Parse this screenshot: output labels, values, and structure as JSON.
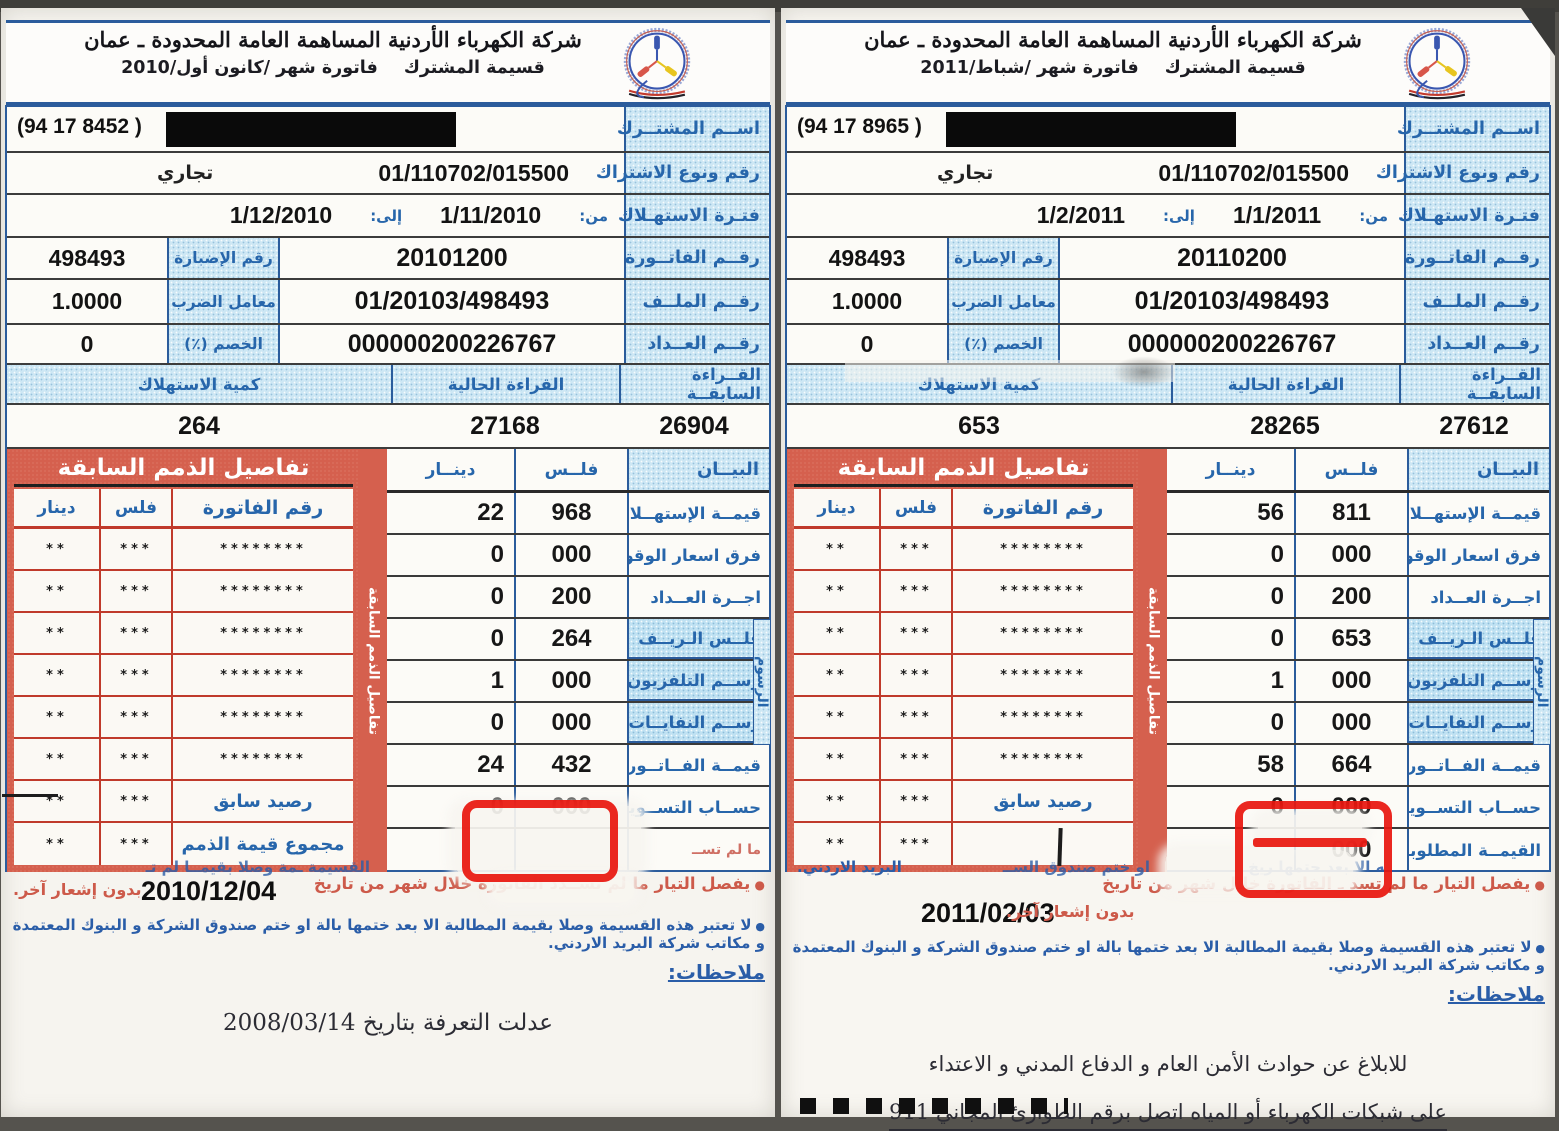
{
  "page": {
    "annotation_color": "#e8150d",
    "scan_background": "#55534e"
  },
  "bills": [
    {
      "id": "december-2010",
      "header": {
        "company": "شركة الكهرباء الأردنية المساهمة العامة المحدودة ـ عمان",
        "coupon": "قسيمة المشترك",
        "invoice_month": "فاتورة شهر /كانون أول/2010"
      },
      "info": {
        "name_label": "اســم المشتــرك",
        "phone": "(94 17 8452 )",
        "subscription_label": "رقم ونوع الاشتراك",
        "subscription_number": "01/110702/015500",
        "subscription_type": "تجاري",
        "period_label": "فتـرة الاستهـلاك",
        "from_label": "من:",
        "from": "1/11/2010",
        "to_label": "إلى:",
        "to": "1/12/2010",
        "invoice_label": "رقــم الفاتــورة",
        "invoice_number": "20101200",
        "folder_label": "رقم الإضبارة",
        "folder_number": "498493",
        "file_label": "رقــم الملــف",
        "file_number": "01/20103/498493",
        "multiplier_label": "معامل الضرب",
        "multiplier": "1.0000",
        "meter_label": "رقــم العــداد",
        "meter_number": "000000200226767",
        "discount_label": "الخصم (٪)",
        "discount": "0"
      },
      "readings": {
        "previous_label": "القــراءة السابقــة",
        "previous": "26904",
        "current_label": "القراءة الحالية",
        "current": "27168",
        "quantity_label": "كمية الاستهلاك",
        "quantity": "264"
      },
      "charges": {
        "statement_label": "البيــان",
        "fils_label": "فلــس",
        "dinar_label": "دينــار",
        "fees_group_label": "الرسوم",
        "rows": [
          {
            "label": "قيمــة الإستهــلاك",
            "fils": "968",
            "dinar": "22"
          },
          {
            "label": "فرق اسعار الوقود",
            "fils": "000",
            "dinar": "0"
          },
          {
            "label": "اجــرة العــداد",
            "fils": "200",
            "dinar": "0"
          },
          {
            "label": "فلــس الـريــف",
            "fils": "264",
            "dinar": "0",
            "hl": true
          },
          {
            "label": "رســم التلفزيون",
            "fils": "000",
            "dinar": "1",
            "hl": true
          },
          {
            "label": "رســم النفايــات",
            "fils": "000",
            "dinar": "0",
            "hl": true
          },
          {
            "label": "قيمــة الفــاتــورة",
            "fils": "432",
            "dinar": "24"
          },
          {
            "label": "حســاب التســوية",
            "fils": "000",
            "dinar": "0"
          },
          {
            "label": "ما لم تســ",
            "fils": "",
            "dinar": "",
            "frag": true
          }
        ]
      },
      "debts": {
        "title": "تفاصيل الذمم السابقة",
        "vertical_title": "تفاصيل الذمم السابقة",
        "invoice_col": "رقم الفاتورة",
        "fils_col": "فلس",
        "dinar_col": "دينار",
        "rows": [
          {
            "invoice": "********",
            "fils": "***",
            "dinar": "**"
          },
          {
            "invoice": "********",
            "fils": "***",
            "dinar": "**"
          },
          {
            "invoice": "********",
            "fils": "***",
            "dinar": "**"
          },
          {
            "invoice": "********",
            "fils": "***",
            "dinar": "**"
          },
          {
            "invoice": "********",
            "fils": "***",
            "dinar": "**"
          },
          {
            "invoice": "********",
            "fils": "***",
            "dinar": "**"
          },
          {
            "invoice": "رصيد سابق",
            "fils": "***",
            "dinar": "**",
            "text": true
          },
          {
            "invoice": "مجموع قيمة الذمم",
            "fils": "***",
            "dinar": "**",
            "text": true
          }
        ]
      },
      "notes": {
        "erased_fragment": "القسيمة ـمة وصلا بقيمــا لم تـ",
        "cut_warning": "يفصل التيار ما لم تســدد الفاتورة خلال شهر من تاريخ",
        "date": "2010/12/04",
        "no_notice": "بدون إشعار آخر.",
        "stamp_note": "لا تعتبر هذه القسيمة وصلا بقيمة المطالبة الا بعد ختمها بالة او ختم صندوق الشركة و البنوك المعتمدة و مكاتب شركة البريد الاردني.",
        "notes_label": "ملاحظات:",
        "handwritten_note": "عدلت التعرفة بتاريخ 2008/03/14"
      }
    },
    {
      "id": "february-2011",
      "header": {
        "company": "شركة الكهرباء الأردنية المساهمة العامة المحدودة ـ عمان",
        "coupon": "قسيمة المشترك",
        "invoice_month": "فاتورة شهر /شباط/2011"
      },
      "info": {
        "name_label": "اســم المشتــرك",
        "phone": "(94 17 8965 )",
        "subscription_label": "رقم ونوع الاشتراك",
        "subscription_number": "01/110702/015500",
        "subscription_type": "تجاري",
        "period_label": "فتـرة الاستهـلاك",
        "from_label": "من:",
        "from": "1/1/2011",
        "to_label": "إلى:",
        "to": "1/2/2011",
        "invoice_label": "رقــم الفاتــورة",
        "invoice_number": "20110200",
        "folder_label": "رقم الإضبارة",
        "folder_number": "498493",
        "file_label": "رقــم الملــف",
        "file_number": "01/20103/498493",
        "multiplier_label": "معامل الضرب",
        "multiplier": "1.0000",
        "meter_label": "رقــم العــداد",
        "meter_number": "000000200226767",
        "discount_label": "الخصم (٪)",
        "discount": "0"
      },
      "readings": {
        "previous_label": "القــراءة السابقــة",
        "previous": "27612",
        "current_label": "القراءة الحالية",
        "current": "28265",
        "quantity_label": "كمية الاستهلاك",
        "quantity": "653"
      },
      "charges": {
        "statement_label": "البيــان",
        "fils_label": "فلــس",
        "dinar_label": "دينــار",
        "fees_group_label": "الرسوم",
        "rows": [
          {
            "label": "قيمــة الإستهــلاك",
            "fils": "811",
            "dinar": "56"
          },
          {
            "label": "فرق اسعار الوقود",
            "fils": "000",
            "dinar": "0"
          },
          {
            "label": "اجــرة العــداد",
            "fils": "200",
            "dinar": "0"
          },
          {
            "label": "فلــس الـريــف",
            "fils": "653",
            "dinar": "0",
            "hl": true
          },
          {
            "label": "رســم التلفزيون",
            "fils": "000",
            "dinar": "1",
            "hl": true
          },
          {
            "label": "رســم النفايــات",
            "fils": "000",
            "dinar": "0",
            "hl": true
          },
          {
            "label": "قيمــة الفــاتــورة",
            "fils": "664",
            "dinar": "58"
          },
          {
            "label": "حســاب التســوية",
            "fils": "000",
            "dinar": "0"
          },
          {
            "label": "القيمــة المطلوبــه",
            "fils": "000",
            "dinar": ""
          }
        ]
      },
      "debts": {
        "title": "تفاصيل الذمم السابقة",
        "vertical_title": "تفاصيل الذمم السابقة",
        "invoice_col": "رقم الفاتورة",
        "fils_col": "فلس",
        "dinar_col": "دينار",
        "rows": [
          {
            "invoice": "********",
            "fils": "***",
            "dinar": "**"
          },
          {
            "invoice": "********",
            "fils": "***",
            "dinar": "**"
          },
          {
            "invoice": "********",
            "fils": "***",
            "dinar": "**"
          },
          {
            "invoice": "********",
            "fils": "***",
            "dinar": "**"
          },
          {
            "invoice": "********",
            "fils": "***",
            "dinar": "**"
          },
          {
            "invoice": "********",
            "fils": "***",
            "dinar": "**"
          },
          {
            "invoice": "رصيد سابق",
            "fils": "***",
            "dinar": "**",
            "text": true
          },
          {
            "invoice": "",
            "fils": "***",
            "dinar": "**",
            "text": true
          }
        ]
      },
      "notes": {
        "fragment_right": "ــه الا بعد حتمها ريخ",
        "fragment_mid": "او ختم صندوق الســ",
        "fragment_left": "البريد الاردني.",
        "cut_warning": "يفصل التيار ما لم تسد ـ الفاتورة خلال شهر من تاريخ",
        "date": "2011/02/03",
        "no_notice": "بدون إشعار آخر.",
        "stamp_note": "لا تعتبر هذه القسيمة وصلا بقيمة المطالبة الا بعد ختمها بالة او ختم صندوق الشركة و البنوك المعتمدة و مكاتب شركة البريد الاردني.",
        "notes_label": "ملاحظات:",
        "emergency_line1": "للابلاغ عن حوادث الأمن العام و الدفاع المدني و الاعتداء",
        "emergency_line2": "على شبكات الكهرباء أو المياه اتصل برقم الطوارئ المجاني 911"
      }
    }
  ]
}
